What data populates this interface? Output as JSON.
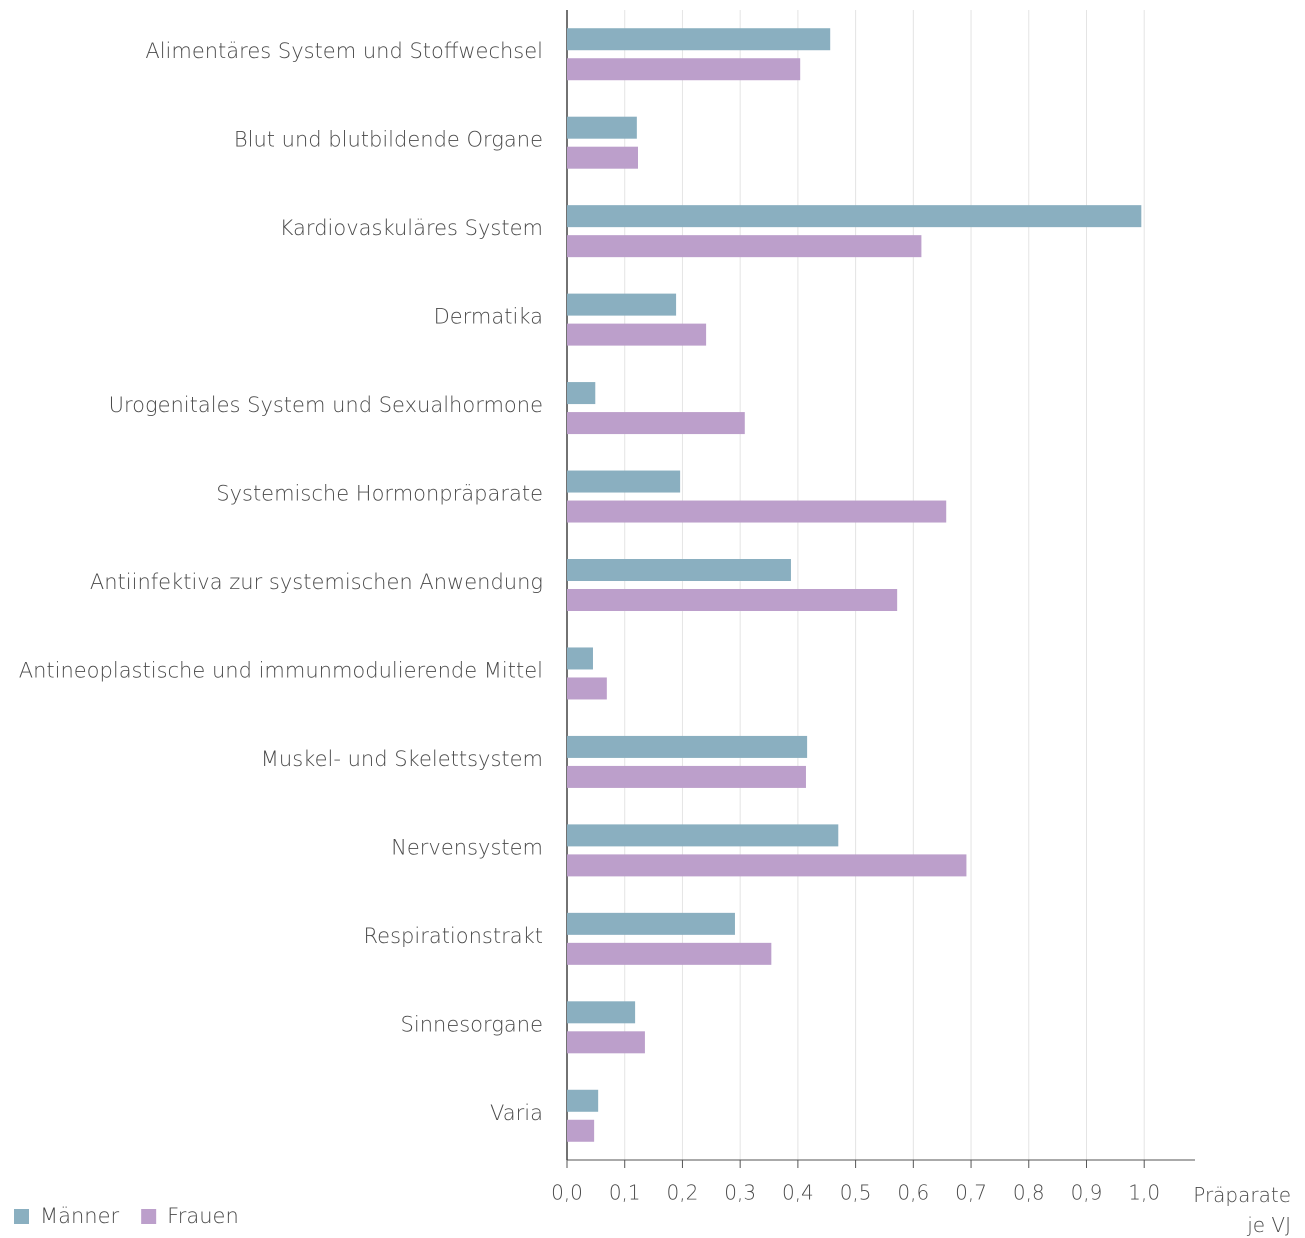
{
  "chart_data": {
    "type": "bar",
    "orientation": "horizontal",
    "categories": [
      "Alimentäres System und Stoffwechsel",
      "Blut und blutbildende Organe",
      "Kardiovaskuläres System",
      "Dermatika",
      "Urogenitales System und Sexualhormone",
      "Systemische Hormonpräparate",
      "Antiinfektiva zur systemischen Anwendung",
      "Antineoplastische und immunmodulierende Mittel",
      "Muskel- und Skelettsystem",
      "Nervensystem",
      "Respirationstrakt",
      "Sinnesorgane",
      "Varia"
    ],
    "series": [
      {
        "name": "Männer",
        "color": "#8aafc0",
        "values": [
          0.456,
          0.121,
          0.995,
          0.189,
          0.049,
          0.196,
          0.388,
          0.045,
          0.416,
          0.47,
          0.291,
          0.118,
          0.054
        ]
      },
      {
        "name": "Frauen",
        "color": "#bc9fcb",
        "values": [
          0.404,
          0.123,
          0.614,
          0.241,
          0.308,
          0.657,
          0.572,
          0.069,
          0.414,
          0.692,
          0.354,
          0.135,
          0.047
        ]
      }
    ],
    "xlabel": "Präparate je VJ",
    "xlim": [
      0,
      1.088
    ],
    "xticks": [
      {
        "value": 0,
        "label": "0,0"
      },
      {
        "value": 0.1,
        "label": "0,1"
      },
      {
        "value": 0.2,
        "label": "0,2"
      },
      {
        "value": 0.3,
        "label": "0,3"
      },
      {
        "value": 0.4,
        "label": "0,4"
      },
      {
        "value": 0.5,
        "label": "0,5"
      },
      {
        "value": 0.6,
        "label": "0,6"
      },
      {
        "value": 0.7,
        "label": "0,7"
      },
      {
        "value": 0.8,
        "label": "0,8"
      },
      {
        "value": 0.9,
        "label": "0,9"
      },
      {
        "value": 1.0,
        "label": "1,0"
      }
    ],
    "grid": true,
    "legend": "bottom-left"
  }
}
